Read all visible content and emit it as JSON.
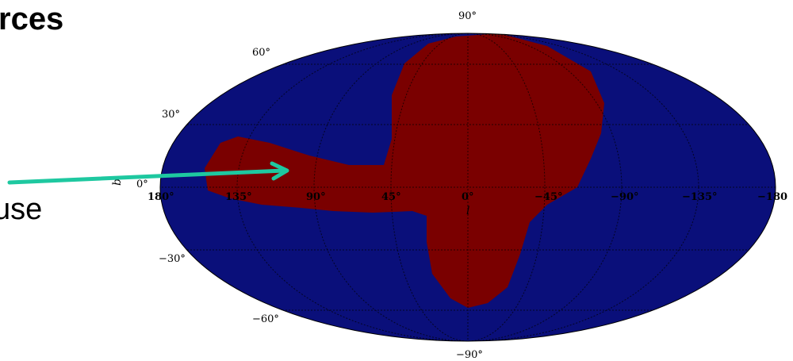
{
  "slide": {
    "title_fragment": "rces",
    "body_fragment": "use"
  },
  "map": {
    "projection": "mollweide",
    "colors": {
      "sky_background": "#0a0f7a",
      "region_fill": "#7a0000",
      "arrow": "#1ec8a0",
      "grid": "#000000"
    },
    "latitude_labels": {
      "b90": "90°",
      "b60": "60°",
      "b30": "30°",
      "b0": "0°",
      "bm30": "−30°",
      "bm60": "−60°",
      "bm90": "−90°"
    },
    "longitude_labels": {
      "l180": "180°",
      "l135": "135°",
      "l90": "90°",
      "l45": "45°",
      "l0": "0°",
      "lm45": "−45°",
      "lm90": "−90°",
      "lm135": "−135°",
      "lm180": "−180"
    },
    "x_axis_label": "l",
    "y_axis_label": "b"
  }
}
